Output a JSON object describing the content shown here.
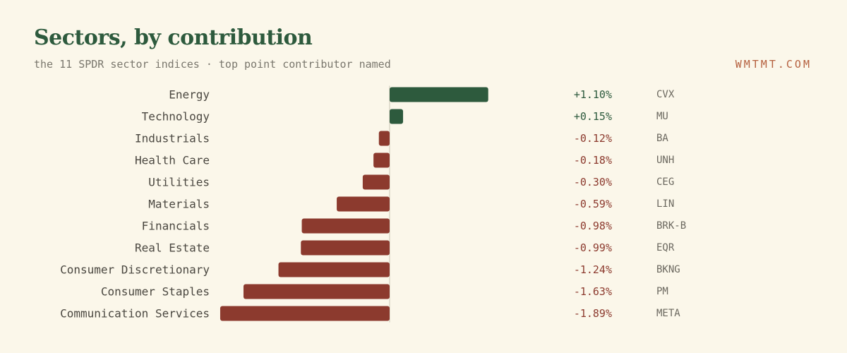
{
  "header": {
    "title": "Sectors, by contribution",
    "subtitle": "the 11 SPDR sector indices · top point contributor named",
    "brand": "WMTMT.COM"
  },
  "colors": {
    "positive": "#2d5a3d",
    "negative": "#8c3a2e",
    "axis": "#c9c4b4"
  },
  "chart_data": {
    "type": "bar",
    "orientation": "horizontal",
    "title": "Sectors, by contribution",
    "subtitle": "the 11 SPDR sector indices · top point contributor named",
    "categories": [
      "Energy",
      "Technology",
      "Industrials",
      "Health Care",
      "Utilities",
      "Materials",
      "Financials",
      "Real Estate",
      "Consumer Discretionary",
      "Consumer Staples",
      "Communication Services"
    ],
    "values": [
      1.1,
      0.15,
      -0.12,
      -0.18,
      -0.3,
      -0.59,
      -0.98,
      -0.99,
      -1.24,
      -1.63,
      -1.89
    ],
    "value_labels": [
      "+1.10%",
      "+0.15%",
      "-0.12%",
      "-0.18%",
      "-0.30%",
      "-0.59%",
      "-0.98%",
      "-0.99%",
      "-1.24%",
      "-1.63%",
      "-1.89%"
    ],
    "top_contributors": [
      "CVX",
      "MU",
      "BA",
      "UNH",
      "CEG",
      "LIN",
      "BRK-B",
      "EQR",
      "BKNG",
      "PM",
      "META"
    ],
    "unit": "%",
    "xlim": [
      -1.89,
      1.1
    ],
    "grid": false,
    "legend": "none"
  }
}
